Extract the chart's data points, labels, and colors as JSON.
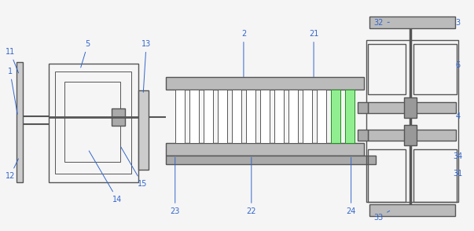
{
  "bg_color": "#f5f5f5",
  "line_color": "#555555",
  "label_color": "#3366cc",
  "lw": 1.0,
  "tlw": 0.7,
  "fig_width": 6.03,
  "fig_height": 2.94,
  "dpi": 100
}
